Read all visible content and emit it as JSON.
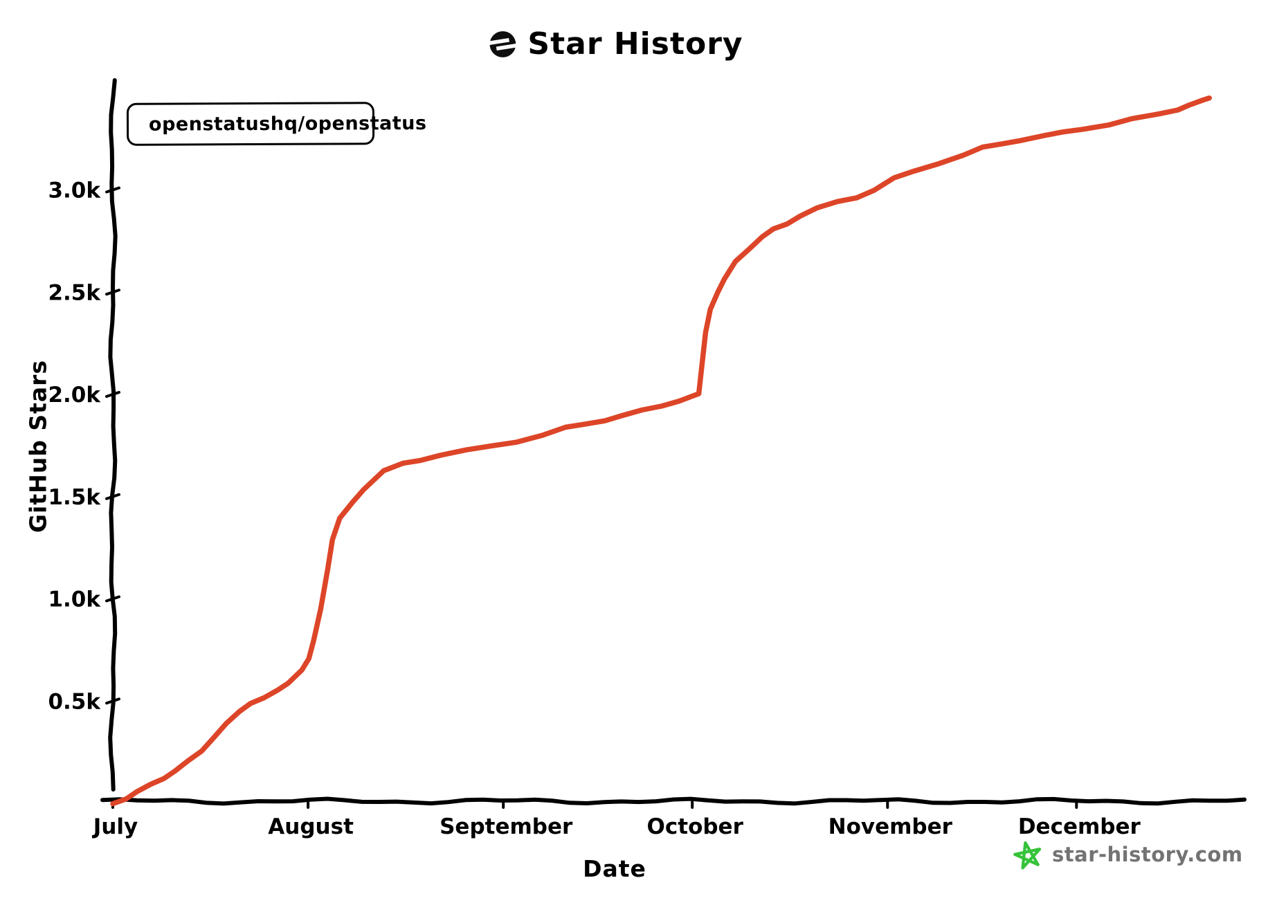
{
  "title": {
    "text": "Star History",
    "logo_icon": "star-history-logo-icon"
  },
  "legend": {
    "series_label": "openstatushq/openstatus",
    "marker_color": "#dd4528"
  },
  "axes": {
    "y": {
      "label": "GitHub Stars",
      "ticks": [
        {
          "label": "0.5k",
          "value": 500
        },
        {
          "label": "1.0k",
          "value": 1000
        },
        {
          "label": "1.5k",
          "value": 1500
        },
        {
          "label": "2.0k",
          "value": 2000
        },
        {
          "label": "2.5k",
          "value": 2500
        },
        {
          "label": "3.0k",
          "value": 3000
        }
      ]
    },
    "x": {
      "label": "Date",
      "ticks": [
        {
          "label": "July",
          "day": 0
        },
        {
          "label": "August",
          "day": 31
        },
        {
          "label": "September",
          "day": 62
        },
        {
          "label": "October",
          "day": 92
        },
        {
          "label": "November",
          "day": 123
        },
        {
          "label": "December",
          "day": 153
        }
      ]
    }
  },
  "watermark": {
    "text": "star-history.com",
    "icon": "green-star-icon",
    "icon_color": "#35c33a",
    "text_color": "#737373"
  },
  "chart_data": {
    "type": "line",
    "title": "Star History",
    "xlabel": "Date",
    "ylabel": "GitHub Stars",
    "x_axis": "time, July through late December",
    "ylim": [
      0,
      3500
    ],
    "grid": false,
    "legend_position": "top-left",
    "style": "hand-drawn (xkcd-like), single red line",
    "line_color": "#dd4528",
    "series": [
      {
        "name": "openstatushq/openstatus",
        "points": [
          {
            "x": "Jul 1",
            "d": 0,
            "y": 0
          },
          {
            "x": "Jul 3",
            "d": 2,
            "y": 25
          },
          {
            "x": "Jul 5",
            "d": 4,
            "y": 55
          },
          {
            "x": "Jul 7",
            "d": 6,
            "y": 90
          },
          {
            "x": "Jul 9",
            "d": 8,
            "y": 125
          },
          {
            "x": "Jul 11",
            "d": 10,
            "y": 160
          },
          {
            "x": "Jul 13",
            "d": 12,
            "y": 205
          },
          {
            "x": "Jul 15",
            "d": 14,
            "y": 255
          },
          {
            "x": "Jul 17",
            "d": 16,
            "y": 320
          },
          {
            "x": "Jul 19",
            "d": 18,
            "y": 390
          },
          {
            "x": "Jul 21",
            "d": 20,
            "y": 445
          },
          {
            "x": "Jul 23",
            "d": 22,
            "y": 490
          },
          {
            "x": "Jul 25",
            "d": 24,
            "y": 520
          },
          {
            "x": "Jul 27",
            "d": 26,
            "y": 550
          },
          {
            "x": "Jul 29",
            "d": 28,
            "y": 585
          },
          {
            "x": "Jul 31",
            "d": 30,
            "y": 655
          },
          {
            "x": "Aug 1",
            "d": 31,
            "y": 710
          },
          {
            "x": "Aug 2",
            "d": 32,
            "y": 790
          },
          {
            "x": "Aug 3",
            "d": 33,
            "y": 950
          },
          {
            "x": "Aug 4",
            "d": 34,
            "y": 1150
          },
          {
            "x": "Aug 5",
            "d": 35,
            "y": 1290
          },
          {
            "x": "Aug 6",
            "d": 36,
            "y": 1390
          },
          {
            "x": "Aug 8",
            "d": 38,
            "y": 1475
          },
          {
            "x": "Aug 10",
            "d": 40,
            "y": 1540
          },
          {
            "x": "Aug 13",
            "d": 43,
            "y": 1625
          },
          {
            "x": "Aug 16",
            "d": 46,
            "y": 1660
          },
          {
            "x": "Aug 19",
            "d": 49,
            "y": 1680
          },
          {
            "x": "Aug 22",
            "d": 52,
            "y": 1705
          },
          {
            "x": "Aug 26",
            "d": 56,
            "y": 1725
          },
          {
            "x": "Aug 30",
            "d": 60,
            "y": 1745
          },
          {
            "x": "Sep 3",
            "d": 64,
            "y": 1770
          },
          {
            "x": "Sep 7",
            "d": 68,
            "y": 1800
          },
          {
            "x": "Sep 11",
            "d": 72,
            "y": 1835
          },
          {
            "x": "Sep 14",
            "d": 75,
            "y": 1855
          },
          {
            "x": "Sep 17",
            "d": 78,
            "y": 1875
          },
          {
            "x": "Sep 20",
            "d": 81,
            "y": 1895
          },
          {
            "x": "Sep 23",
            "d": 84,
            "y": 1920
          },
          {
            "x": "Sep 26",
            "d": 87,
            "y": 1945
          },
          {
            "x": "Sep 29",
            "d": 90,
            "y": 1970
          },
          {
            "x": "Oct 2",
            "d": 93,
            "y": 2000
          },
          {
            "x": "Oct 3",
            "d": 94,
            "y": 2300
          },
          {
            "x": "Oct 4",
            "d": 95,
            "y": 2420
          },
          {
            "x": "Oct 5",
            "d": 96,
            "y": 2500
          },
          {
            "x": "Oct 6",
            "d": 97,
            "y": 2560
          },
          {
            "x": "Oct 8",
            "d": 99,
            "y": 2650
          },
          {
            "x": "Oct 10",
            "d": 101,
            "y": 2715
          },
          {
            "x": "Oct 12",
            "d": 103,
            "y": 2770
          },
          {
            "x": "Oct 14",
            "d": 105,
            "y": 2805
          },
          {
            "x": "Oct 16",
            "d": 107,
            "y": 2835
          },
          {
            "x": "Oct 18",
            "d": 109,
            "y": 2875
          },
          {
            "x": "Oct 21",
            "d": 112,
            "y": 2910
          },
          {
            "x": "Oct 24",
            "d": 115,
            "y": 2940
          },
          {
            "x": "Oct 27",
            "d": 118,
            "y": 2965
          },
          {
            "x": "Oct 30",
            "d": 121,
            "y": 3000
          },
          {
            "x": "Nov 2",
            "d": 124,
            "y": 3055
          },
          {
            "x": "Nov 5",
            "d": 127,
            "y": 3090
          },
          {
            "x": "Nov 9",
            "d": 131,
            "y": 3130
          },
          {
            "x": "Nov 13",
            "d": 135,
            "y": 3170
          },
          {
            "x": "Nov 16",
            "d": 138,
            "y": 3205
          },
          {
            "x": "Nov 19",
            "d": 141,
            "y": 3225
          },
          {
            "x": "Nov 22",
            "d": 144,
            "y": 3245
          },
          {
            "x": "Nov 26",
            "d": 148,
            "y": 3265
          },
          {
            "x": "Nov 29",
            "d": 151,
            "y": 3280
          },
          {
            "x": "Dec 2",
            "d": 154,
            "y": 3300
          },
          {
            "x": "Dec 6",
            "d": 158,
            "y": 3320
          },
          {
            "x": "Dec 10",
            "d": 162,
            "y": 3345
          },
          {
            "x": "Dec 14",
            "d": 166,
            "y": 3370
          },
          {
            "x": "Dec 17",
            "d": 169,
            "y": 3395
          },
          {
            "x": "Dec 19",
            "d": 171,
            "y": 3415
          },
          {
            "x": "Dec 21",
            "d": 173,
            "y": 3435
          },
          {
            "x": "Dec 22",
            "d": 174,
            "y": 3450
          }
        ]
      }
    ]
  }
}
